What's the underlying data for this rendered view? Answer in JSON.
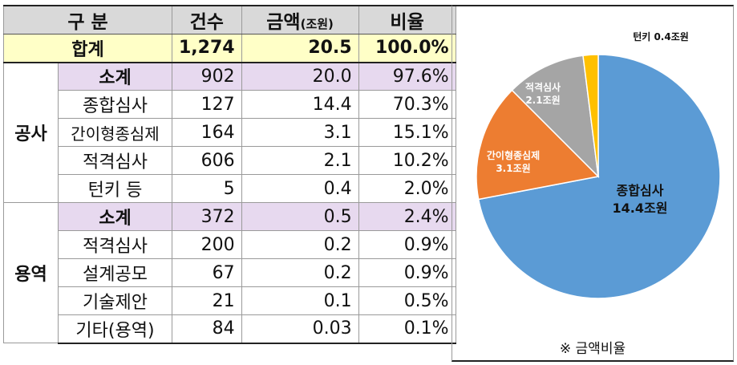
{
  "table": {
    "header": {
      "col1": "구 분",
      "count": "건수",
      "amount": "금액",
      "amount_unit": "(조원)",
      "ratio": "비율"
    },
    "total": {
      "label": "합계",
      "count": "1,274",
      "amount": "20.5",
      "ratio": "100.0%"
    },
    "groups": [
      {
        "name": "공사",
        "rows": [
          {
            "label": "소계",
            "count": "902",
            "amount": "20.0",
            "ratio": "97.6%"
          },
          {
            "label": "종합심사",
            "count": "127",
            "amount": "14.4",
            "ratio": "70.3%"
          },
          {
            "label": "간이형종심제",
            "count": "164",
            "amount": "3.1",
            "ratio": "15.1%"
          },
          {
            "label": "적격심사",
            "count": "606",
            "amount": "2.1",
            "ratio": "10.2%"
          },
          {
            "label": "턴키 등",
            "count": "5",
            "amount": "0.4",
            "ratio": "2.0%"
          }
        ]
      },
      {
        "name": "용역",
        "rows": [
          {
            "label": "소계",
            "count": "372",
            "amount": "0.5",
            "ratio": "2.4%"
          },
          {
            "label": "적격심사",
            "count": "200",
            "amount": "0.2",
            "ratio": "0.9%"
          },
          {
            "label": "설계공모",
            "count": "67",
            "amount": "0.2",
            "ratio": "0.9%"
          },
          {
            "label": "기술제안",
            "count": "21",
            "amount": "0.1",
            "ratio": "0.5%"
          },
          {
            "label": "기타(용역)",
            "count": "84",
            "amount": "0.03",
            "ratio": "0.1%"
          }
        ]
      }
    ]
  },
  "chart_data": {
    "type": "pie",
    "note": "※ 금액비율",
    "slices": [
      {
        "name": "종합심사",
        "value_label": "14.4조원",
        "value": 14.4,
        "color": "#5b9bd5"
      },
      {
        "name": "간이형종심제",
        "value_label": "3.1조원",
        "value": 3.1,
        "color": "#ed7d31"
      },
      {
        "name": "적격심사",
        "value_label": "2.1조원",
        "value": 2.1,
        "color": "#a5a5a5"
      },
      {
        "name": "턴키",
        "value_label": "0.4조원",
        "value": 0.4,
        "color": "#ffc000"
      }
    ]
  }
}
